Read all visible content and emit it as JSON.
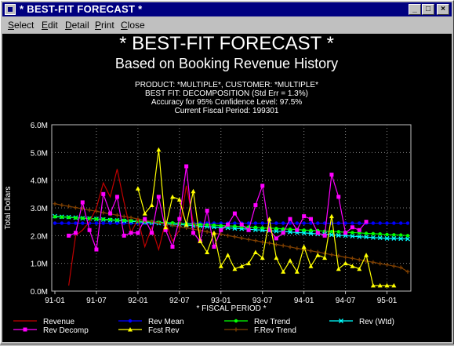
{
  "window": {
    "title": "* BEST-FIT FORECAST *",
    "buttons": {
      "minimize": "_",
      "maximize": "□",
      "close": "×"
    }
  },
  "menu": [
    {
      "label": "Select",
      "key": "S"
    },
    {
      "label": "Edit",
      "key": "E"
    },
    {
      "label": "Detail",
      "key": "D"
    },
    {
      "label": "Print",
      "key": "P"
    },
    {
      "label": "Close",
      "key": "C"
    }
  ],
  "header": {
    "title": "* BEST-FIT FORECAST *",
    "subtitle": "Based on Booking Revenue History",
    "info": [
      "PRODUCT: *MULTIPLE*, CUSTOMER: *MULTIPLE*",
      "BEST FIT:  DECOMPOSITION (Std Err = 1.3%)",
      "Accuracy for 95% Confidence Level: 97.5%",
      "Current Fiscal Period:  199301"
    ]
  },
  "colors": {
    "background": "#000000",
    "Revenue": "#c00000",
    "Rev Mean": "#0000ff",
    "Rev Trend": "#00ff00",
    "Rev (Wtd)": "#00ffff",
    "Rev Decomp": "#ff00ff",
    "Fcst Rev": "#ffff00",
    "F.Rev Trend": "#804000",
    "grid": "#808080",
    "text": "#ffffff"
  },
  "chart_data": {
    "type": "line",
    "xlabel": "* FISCAL PERIOD *",
    "ylabel": "Total Dollars",
    "ylim": [
      0,
      6.0
    ],
    "yticks": [
      "0.0M",
      "1.0M",
      "2.0M",
      "3.0M",
      "4.0M",
      "5.0M",
      "6.0M"
    ],
    "xticks": [
      "91-01",
      "91-07",
      "92-01",
      "92-07",
      "93-01",
      "93-07",
      "94-01",
      "94-07",
      "95-01"
    ],
    "x_periods": 52,
    "grid": true,
    "legend_position": "bottom",
    "legend": [
      "Revenue",
      "Rev Mean",
      "Rev Trend",
      "Rev (Wtd)",
      "Rev Decomp",
      "Fcst Rev",
      "F.Rev Trend"
    ],
    "series": [
      {
        "name": "Revenue",
        "marker": "none",
        "start": 2,
        "values": [
          0.2,
          2.0,
          2.2,
          2.5,
          3.0,
          3.9,
          3.4,
          4.4,
          3.2,
          2.1,
          2.6,
          1.6,
          2.3,
          1.5,
          2.5,
          1.8,
          2.2,
          3.8,
          2.5,
          2.1
        ]
      },
      {
        "name": "Rev Mean",
        "marker": "dot",
        "start": 0,
        "values": [
          2.45,
          2.45,
          2.45,
          2.45,
          2.45,
          2.45,
          2.45,
          2.45,
          2.45,
          2.45,
          2.45,
          2.45,
          2.45,
          2.45,
          2.45,
          2.45,
          2.45,
          2.45,
          2.45,
          2.45,
          2.45,
          2.45,
          2.45,
          2.45,
          2.45,
          2.45,
          2.45,
          2.45,
          2.45,
          2.45,
          2.45,
          2.45,
          2.45,
          2.45,
          2.45,
          2.45,
          2.45,
          2.45,
          2.45,
          2.45,
          2.45,
          2.45,
          2.45,
          2.45,
          2.45,
          2.45,
          2.45,
          2.45,
          2.45,
          2.45,
          2.45,
          2.45
        ]
      },
      {
        "name": "Rev Trend",
        "marker": "dot",
        "start": 0,
        "values": [
          2.68,
          2.67,
          2.66,
          2.64,
          2.63,
          2.62,
          2.6,
          2.59,
          2.58,
          2.56,
          2.55,
          2.54,
          2.52,
          2.51,
          2.5,
          2.48,
          2.47,
          2.46,
          2.44,
          2.43,
          2.42,
          2.4,
          2.39,
          2.38,
          2.36,
          2.35,
          2.34,
          2.32,
          2.31,
          2.3,
          2.28,
          2.27,
          2.26,
          2.24,
          2.23,
          2.22,
          2.2,
          2.19,
          2.18,
          2.16,
          2.15,
          2.14,
          2.12,
          2.11,
          2.1,
          2.08,
          2.07,
          2.06,
          2.04,
          2.03,
          2.02,
          2.0
        ]
      },
      {
        "name": "Rev (Wtd)",
        "marker": "x",
        "start": 0,
        "values": [
          2.7,
          2.68,
          2.67,
          2.65,
          2.63,
          2.62,
          2.6,
          2.58,
          2.56,
          2.55,
          2.53,
          2.51,
          2.5,
          2.48,
          2.46,
          2.45,
          2.43,
          2.41,
          2.4,
          2.38,
          2.36,
          2.35,
          2.33,
          2.31,
          2.3,
          2.28,
          2.26,
          2.25,
          2.23,
          2.21,
          2.2,
          2.18,
          2.16,
          2.15,
          2.13,
          2.11,
          2.1,
          2.08,
          2.06,
          2.05,
          2.03,
          2.01,
          2.0,
          1.98,
          1.96,
          1.95,
          1.93,
          1.92,
          1.9,
          1.9,
          1.89,
          1.88
        ]
      },
      {
        "name": "Rev Decomp",
        "marker": "square",
        "start": 2,
        "values": [
          2.0,
          2.1,
          3.2,
          2.2,
          1.5,
          3.5,
          2.8,
          3.4,
          2.0,
          2.1,
          2.1,
          2.6,
          2.1,
          3.4,
          2.2,
          1.6,
          2.6,
          4.5,
          2.1,
          1.8,
          2.9,
          1.6,
          2.2,
          2.4,
          2.8,
          2.4,
          2.2,
          3.1,
          3.8,
          2.2,
          1.9,
          2.1,
          2.6,
          2.2,
          2.7,
          2.6,
          2.1,
          2.0,
          4.2,
          3.4,
          2.1,
          2.3,
          2.2,
          2.5
        ]
      },
      {
        "name": "Fcst Rev",
        "marker": "triangle",
        "start": 12,
        "values": [
          3.7,
          2.8,
          3.1,
          5.1,
          2.3,
          3.4,
          3.3,
          2.4,
          3.6,
          1.8,
          1.4,
          2.1,
          0.9,
          1.3,
          0.8,
          0.9,
          1.0,
          1.4,
          1.2,
          2.6,
          1.2,
          0.7,
          1.1,
          0.7,
          1.6,
          0.9,
          1.3,
          1.2,
          2.7,
          0.8,
          1.0,
          0.9,
          0.8,
          1.3,
          0.2,
          0.2,
          0.2,
          0.2
        ]
      },
      {
        "name": "F.Rev Trend",
        "marker": "plus",
        "start": 0,
        "values": [
          3.15,
          3.1,
          3.06,
          3.01,
          2.97,
          2.92,
          2.88,
          2.83,
          2.78,
          2.74,
          2.69,
          2.65,
          2.6,
          2.55,
          2.51,
          2.46,
          2.42,
          2.37,
          2.32,
          2.28,
          2.23,
          2.19,
          2.14,
          2.09,
          2.05,
          2.0,
          1.96,
          1.91,
          1.86,
          1.82,
          1.77,
          1.73,
          1.68,
          1.64,
          1.59,
          1.54,
          1.5,
          1.45,
          1.41,
          1.36,
          1.31,
          1.27,
          1.22,
          1.18,
          1.13,
          1.08,
          1.04,
          0.99,
          0.95,
          0.9,
          0.85,
          0.7
        ]
      }
    ]
  }
}
